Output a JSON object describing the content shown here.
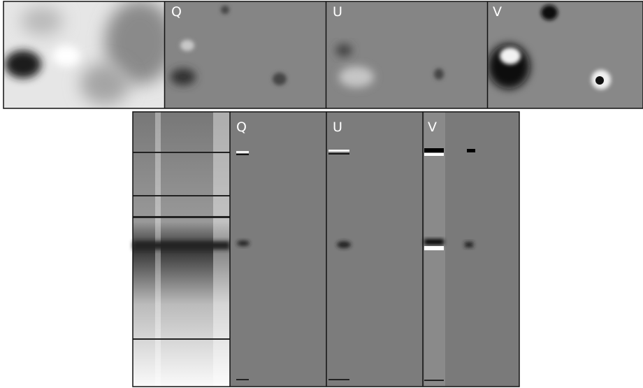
{
  "top_row": {
    "panels": [
      {
        "label": "Q"
      },
      {
        "label": "U"
      },
      {
        "label": "V"
      }
    ]
  },
  "bottom_row": {
    "panels": [
      {
        "label": "Q"
      },
      {
        "label": "U"
      },
      {
        "label": "V"
      }
    ]
  }
}
